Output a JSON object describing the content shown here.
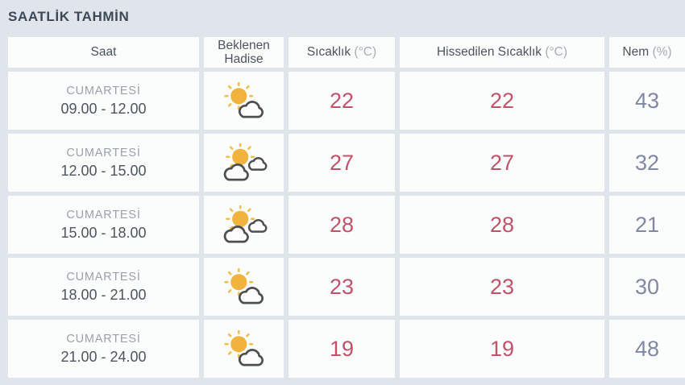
{
  "page": {
    "title": "SAATLİK TAHMİN"
  },
  "colors": {
    "background": "#dfe5ea",
    "cell_background": "#fbfcfc",
    "title_text": "#3c4855",
    "header_text": "#4b545e",
    "header_unit_text": "#a7adb5",
    "day_text": "#9aa2ab",
    "time_text": "#4d555f",
    "temperature_text": "#c0536a",
    "humidity_text": "#8287a5",
    "sun": "#f1b33e",
    "cloud_outline": "#4e4e4e"
  },
  "table": {
    "headers": [
      {
        "label": "Saat",
        "unit": ""
      },
      {
        "label": "Beklenen Hadise",
        "unit": ""
      },
      {
        "label": "Sıcaklık",
        "unit": "(°C)"
      },
      {
        "label": "Hissedilen Sıcaklık",
        "unit": "(°C)"
      },
      {
        "label": "Nem",
        "unit": "(%)"
      }
    ],
    "rows": [
      {
        "day": "CUMARTESİ",
        "time": "09.00 - 12.00",
        "icon": "sun-cloud-icon",
        "temperature": "22",
        "feels_like": "22",
        "humidity": "43"
      },
      {
        "day": "CUMARTESİ",
        "time": "12.00 - 15.00",
        "icon": "sun-two-clouds-icon",
        "temperature": "27",
        "feels_like": "27",
        "humidity": "32"
      },
      {
        "day": "CUMARTESİ",
        "time": "15.00 - 18.00",
        "icon": "sun-two-clouds-icon",
        "temperature": "28",
        "feels_like": "28",
        "humidity": "21"
      },
      {
        "day": "CUMARTESİ",
        "time": "18.00 - 21.00",
        "icon": "sun-cloud-icon",
        "temperature": "23",
        "feels_like": "23",
        "humidity": "30"
      },
      {
        "day": "CUMARTESİ",
        "time": "21.00 - 24.00",
        "icon": "sun-cloud-icon",
        "temperature": "19",
        "feels_like": "19",
        "humidity": "48"
      }
    ]
  }
}
